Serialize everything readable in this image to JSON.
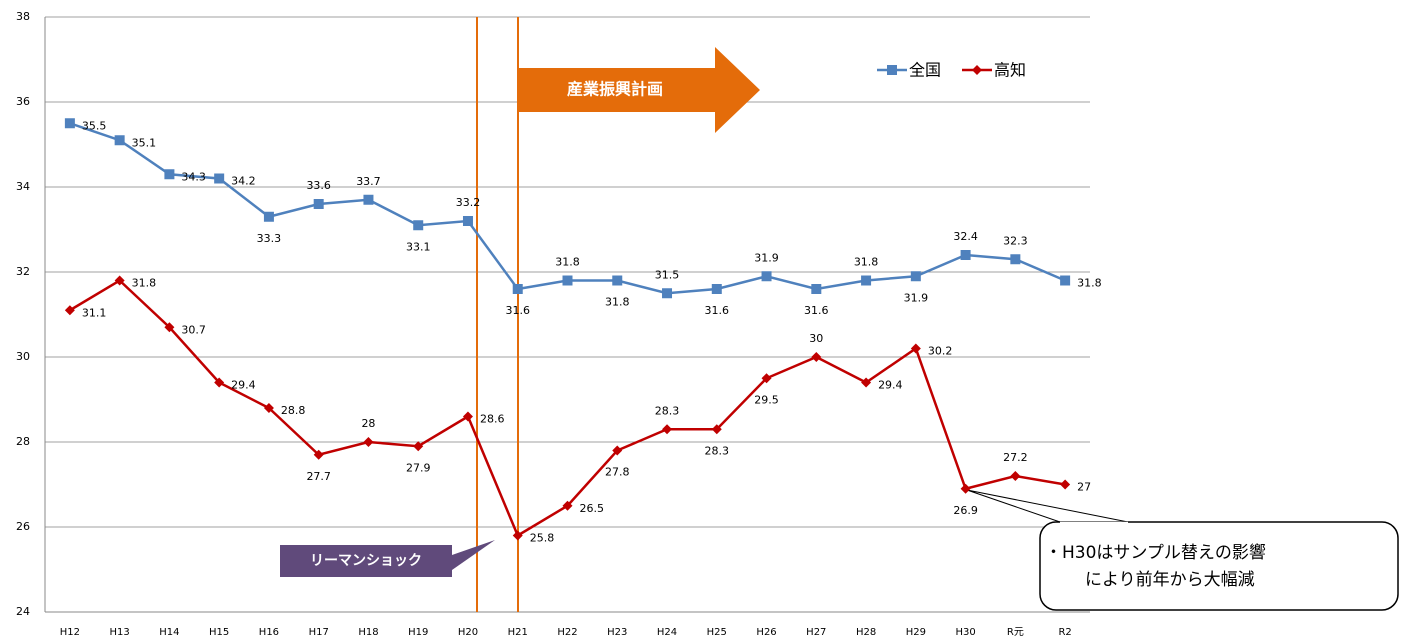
{
  "chart_data": {
    "type": "line",
    "categories": [
      "H12",
      "H13",
      "H14",
      "H15",
      "H16",
      "H17",
      "H18",
      "H19",
      "H20",
      "H21",
      "H22",
      "H23",
      "H24",
      "H25",
      "H26",
      "H27",
      "H28",
      "H29",
      "H30",
      "R元",
      "R2"
    ],
    "series": [
      {
        "name": "全国",
        "color": "#4f81bd",
        "values": [
          35.5,
          35.1,
          34.3,
          34.2,
          33.3,
          33.6,
          33.7,
          33.1,
          33.2,
          31.6,
          31.8,
          31.8,
          31.5,
          31.6,
          31.9,
          31.6,
          31.8,
          31.9,
          32.4,
          32.3,
          31.8
        ]
      },
      {
        "name": "高知",
        "color": "#c00000",
        "values": [
          31.1,
          31.8,
          30.7,
          29.4,
          28.8,
          27.7,
          28.0,
          27.9,
          28.6,
          25.8,
          26.5,
          27.8,
          28.3,
          28.3,
          29.5,
          30.0,
          29.4,
          30.2,
          26.9,
          27.2,
          27.0
        ]
      }
    ],
    "ylim": [
      24,
      38
    ],
    "yticks": [
      24,
      26,
      28,
      30,
      32,
      34,
      36,
      38
    ],
    "grid": true,
    "annotations": [
      "産業振興計画",
      "リーマンショック",
      "・H30はサンプル替えの影響",
      "により前年から大幅減"
    ]
  }
}
